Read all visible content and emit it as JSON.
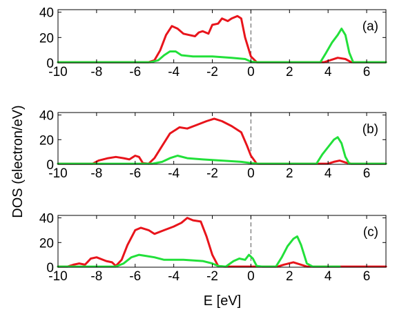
{
  "chart_data": {
    "type": "line",
    "xlabel": "E [eV]",
    "ylabel": "DOS  (electron/eV)",
    "xlim": [
      -10,
      7
    ],
    "ylim": [
      0,
      42
    ],
    "xticks": [
      -10,
      -8,
      -6,
      -4,
      -2,
      0,
      2,
      4,
      6
    ],
    "yticks": [
      0,
      20,
      40
    ],
    "fermi_level": 0,
    "colors": {
      "red": "#e8141b",
      "green": "#22e03a",
      "fermi": "#555555"
    },
    "panels": [
      {
        "label": "(a)",
        "series": [
          {
            "color": "red",
            "points": [
              [
                -10,
                0.5
              ],
              [
                -5.3,
                0.5
              ],
              [
                -5.0,
                2
              ],
              [
                -4.7,
                10
              ],
              [
                -4.4,
                22
              ],
              [
                -4.1,
                29
              ],
              [
                -3.8,
                27
              ],
              [
                -3.5,
                23
              ],
              [
                -3.2,
                22
              ],
              [
                -2.9,
                21
              ],
              [
                -2.7,
                24
              ],
              [
                -2.5,
                25
              ],
              [
                -2.2,
                23
              ],
              [
                -2.0,
                30
              ],
              [
                -1.7,
                31
              ],
              [
                -1.5,
                35
              ],
              [
                -1.2,
                33
              ],
              [
                -1.0,
                35
              ],
              [
                -0.7,
                37
              ],
              [
                -0.5,
                35
              ],
              [
                -0.3,
                20
              ],
              [
                0.0,
                5
              ],
              [
                0.3,
                0.5
              ],
              [
                3.8,
                0.5
              ],
              [
                4.1,
                2
              ],
              [
                4.5,
                4
              ],
              [
                4.9,
                3
              ],
              [
                5.2,
                0.5
              ],
              [
                7,
                0.5
              ]
            ]
          },
          {
            "color": "green",
            "points": [
              [
                -10,
                0.5
              ],
              [
                -5.2,
                0.5
              ],
              [
                -4.8,
                2
              ],
              [
                -4.5,
                6
              ],
              [
                -4.2,
                9
              ],
              [
                -3.9,
                9
              ],
              [
                -3.6,
                6
              ],
              [
                -3.0,
                5
              ],
              [
                -2.0,
                5
              ],
              [
                -1.0,
                4
              ],
              [
                -0.3,
                3
              ],
              [
                0.0,
                1
              ],
              [
                0.3,
                0.5
              ],
              [
                3.6,
                0.5
              ],
              [
                3.9,
                8
              ],
              [
                4.2,
                16
              ],
              [
                4.5,
                22
              ],
              [
                4.7,
                27
              ],
              [
                4.9,
                22
              ],
              [
                5.1,
                8
              ],
              [
                5.3,
                0.5
              ],
              [
                7,
                0.5
              ]
            ]
          }
        ]
      },
      {
        "label": "(b)",
        "series": [
          {
            "color": "red",
            "points": [
              [
                -10,
                0.5
              ],
              [
                -8.2,
                0.5
              ],
              [
                -7.9,
                3
              ],
              [
                -7.4,
                5
              ],
              [
                -7.0,
                6
              ],
              [
                -6.6,
                5
              ],
              [
                -6.3,
                4
              ],
              [
                -6.0,
                7
              ],
              [
                -5.8,
                6
              ],
              [
                -5.6,
                1
              ],
              [
                -5.3,
                0.5
              ],
              [
                -5.0,
                5
              ],
              [
                -4.6,
                15
              ],
              [
                -4.2,
                25
              ],
              [
                -3.7,
                30
              ],
              [
                -3.3,
                29
              ],
              [
                -2.8,
                32
              ],
              [
                -2.3,
                35
              ],
              [
                -1.9,
                37
              ],
              [
                -1.5,
                35
              ],
              [
                -1.0,
                31
              ],
              [
                -0.5,
                26
              ],
              [
                -0.2,
                15
              ],
              [
                0.0,
                7
              ],
              [
                0.3,
                0.5
              ],
              [
                4.0,
                0.5
              ],
              [
                4.3,
                2
              ],
              [
                4.6,
                3
              ],
              [
                4.9,
                1.5
              ],
              [
                5.2,
                0.5
              ],
              [
                7,
                0.5
              ]
            ]
          },
          {
            "color": "green",
            "points": [
              [
                -10,
                0.5
              ],
              [
                -5.1,
                0.5
              ],
              [
                -4.6,
                2
              ],
              [
                -4.2,
                5
              ],
              [
                -3.8,
                7
              ],
              [
                -3.3,
                5
              ],
              [
                -2.5,
                4
              ],
              [
                -1.5,
                3
              ],
              [
                -0.5,
                2
              ],
              [
                0.0,
                1
              ],
              [
                0.4,
                0.5
              ],
              [
                3.4,
                0.5
              ],
              [
                3.7,
                8
              ],
              [
                4.0,
                14
              ],
              [
                4.3,
                20
              ],
              [
                4.5,
                22
              ],
              [
                4.7,
                17
              ],
              [
                4.9,
                6
              ],
              [
                5.1,
                0.5
              ],
              [
                7,
                0.5
              ]
            ]
          }
        ]
      },
      {
        "label": "(c)",
        "series": [
          {
            "color": "red",
            "points": [
              [
                -10,
                0.5
              ],
              [
                -9.5,
                0.5
              ],
              [
                -9.2,
                2
              ],
              [
                -8.9,
                3
              ],
              [
                -8.6,
                2
              ],
              [
                -8.3,
                7
              ],
              [
                -8.0,
                8
              ],
              [
                -7.5,
                5
              ],
              [
                -7.2,
                4
              ],
              [
                -7.0,
                1
              ],
              [
                -6.7,
                6
              ],
              [
                -6.4,
                18
              ],
              [
                -6.0,
                30
              ],
              [
                -5.7,
                32
              ],
              [
                -5.3,
                30
              ],
              [
                -5.0,
                27
              ],
              [
                -4.5,
                30
              ],
              [
                -4.0,
                33
              ],
              [
                -3.6,
                36
              ],
              [
                -3.3,
                40
              ],
              [
                -3.0,
                38
              ],
              [
                -2.6,
                37
              ],
              [
                -2.3,
                25
              ],
              [
                -2.0,
                10
              ],
              [
                -1.7,
                1
              ],
              [
                -1.4,
                0.5
              ],
              [
                1.4,
                0.5
              ],
              [
                1.7,
                2
              ],
              [
                2.2,
                4
              ],
              [
                2.6,
                2
              ],
              [
                2.9,
                0.5
              ],
              [
                7,
                0.5
              ]
            ]
          },
          {
            "color": "green",
            "points": [
              [
                -10,
                0.5
              ],
              [
                -7.0,
                0.5
              ],
              [
                -6.6,
                3
              ],
              [
                -6.2,
                8
              ],
              [
                -5.8,
                10
              ],
              [
                -5.4,
                9
              ],
              [
                -5.0,
                8
              ],
              [
                -4.5,
                6
              ],
              [
                -3.5,
                6
              ],
              [
                -2.5,
                5
              ],
              [
                -2.0,
                3
              ],
              [
                -1.7,
                1
              ],
              [
                -1.3,
                0.5
              ],
              [
                -0.9,
                5
              ],
              [
                -0.6,
                7
              ],
              [
                -0.3,
                6
              ],
              [
                -0.1,
                10
              ],
              [
                0.1,
                7
              ],
              [
                0.3,
                1
              ],
              [
                0.6,
                0.5
              ],
              [
                1.3,
                0.5
              ],
              [
                1.6,
                8
              ],
              [
                1.9,
                17
              ],
              [
                2.2,
                23
              ],
              [
                2.4,
                25
              ],
              [
                2.6,
                18
              ],
              [
                2.9,
                3
              ],
              [
                3.2,
                0.5
              ],
              [
                4.6,
                0.5
              ]
            ]
          }
        ]
      }
    ]
  }
}
